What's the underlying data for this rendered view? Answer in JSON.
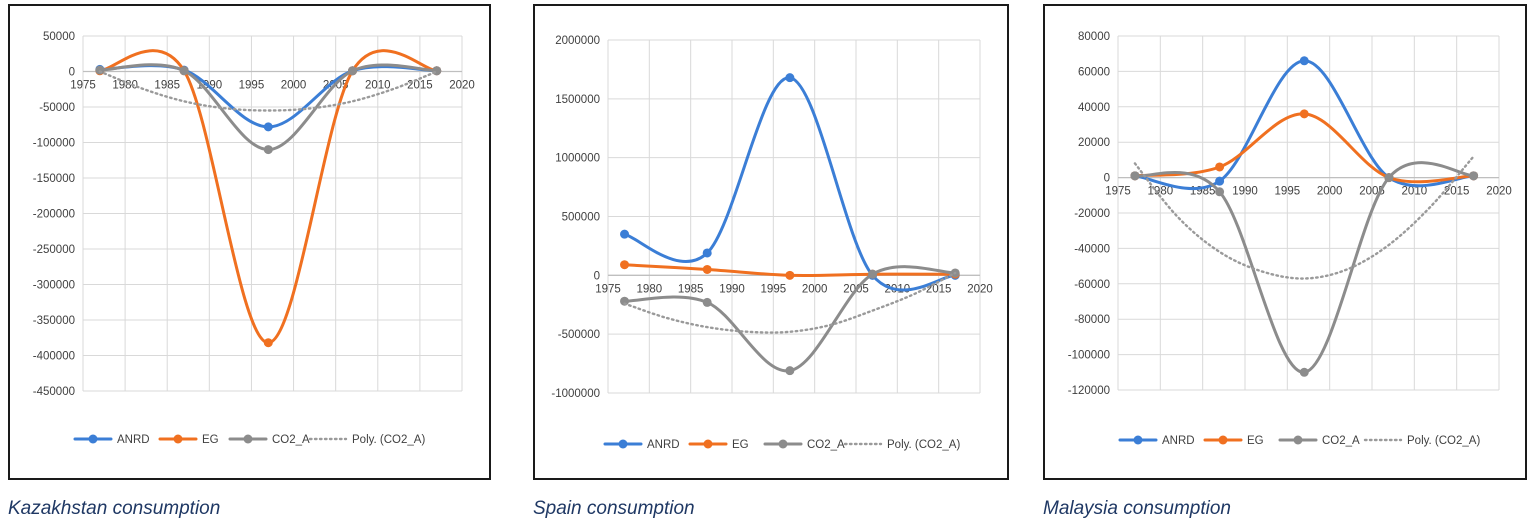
{
  "colors": {
    "ANRD": "#3b7ed6",
    "EG": "#f07020",
    "CO2_A": "#8c8c8c",
    "Poly. (CO2_A)": "#9a9a9a",
    "grid": "#d9d9d9",
    "axis": "#bfbfbf"
  },
  "chart_data": [
    {
      "type": "line",
      "title": "",
      "caption": "Kazakhstan consumption",
      "xlabel": "",
      "ylabel": "",
      "xlim": [
        1975,
        2020
      ],
      "ylim": [
        -450000,
        50000
      ],
      "xticks": [
        1975,
        1980,
        1985,
        1990,
        1995,
        2000,
        2005,
        2010,
        2015,
        2020
      ],
      "xtick_labels": [
        "1975",
        "1980",
        "1985",
        "1990",
        "1995",
        "2000",
        "2005",
        "2010",
        "2015",
        "2020"
      ],
      "yticks": [
        50000,
        0,
        -50000,
        -100000,
        -150000,
        -200000,
        -250000,
        -300000,
        -350000,
        -400000,
        -450000
      ],
      "ytick_labels": [
        "50000",
        "0",
        "-50000",
        "-100000",
        "-150000",
        "-200000",
        "-250000",
        "-300000",
        "-350000",
        "-400000",
        "-450000"
      ],
      "series": [
        {
          "name": "ANRD",
          "smooth": true,
          "markers": true,
          "x": [
            1977,
            1987,
            1997,
            2007,
            2017
          ],
          "y": [
            3000,
            2000,
            -78000,
            1000,
            1000
          ]
        },
        {
          "name": "EG",
          "smooth": true,
          "markers": true,
          "x": [
            1977,
            1987,
            1997,
            2007,
            2017
          ],
          "y": [
            1000,
            1000,
            -382000,
            1000,
            1000
          ]
        },
        {
          "name": "CO2_A",
          "smooth": true,
          "markers": true,
          "x": [
            1977,
            1987,
            1997,
            2007,
            2017
          ],
          "y": [
            2000,
            1000,
            -110000,
            1000,
            1000
          ]
        },
        {
          "name": "Poly. (CO2_A)",
          "smooth": true,
          "markers": false,
          "dotted": true,
          "x": [
            1977,
            1982,
            1987,
            1992,
            1997,
            2002,
            2007,
            2012,
            2017
          ],
          "y": [
            0,
            -24000,
            -42000,
            -52000,
            -55000,
            -52000,
            -42000,
            -24000,
            0
          ]
        }
      ],
      "legend": [
        "ANRD",
        "EG",
        "CO2_A",
        "Poly. (CO2_A)"
      ],
      "legend_position": "bottom"
    },
    {
      "type": "line",
      "title": "",
      "caption": "Spain consumption",
      "xlabel": "",
      "ylabel": "",
      "xlim": [
        1975,
        2020
      ],
      "ylim": [
        -1000000,
        2000000
      ],
      "xticks": [
        1975,
        1980,
        1985,
        1990,
        1995,
        2000,
        2005,
        2010,
        2015,
        2020
      ],
      "xtick_labels": [
        "1975",
        "1980",
        "1985",
        "1990",
        "1995",
        "2000",
        "2005",
        "2010",
        "2015",
        "2020"
      ],
      "yticks": [
        2000000,
        1500000,
        1000000,
        500000,
        0,
        -500000,
        -1000000
      ],
      "ytick_labels": [
        "2000000",
        "1500000",
        "1000000",
        "500000",
        "0",
        "-500000",
        "-1000000"
      ],
      "series": [
        {
          "name": "ANRD",
          "smooth": true,
          "markers": true,
          "x": [
            1977,
            1987,
            1997,
            2007,
            2017
          ],
          "y": [
            350000,
            190000,
            1680000,
            0,
            0
          ]
        },
        {
          "name": "EG",
          "smooth": true,
          "markers": true,
          "x": [
            1977,
            1987,
            1997,
            2007,
            2017
          ],
          "y": [
            90000,
            50000,
            0,
            10000,
            10000
          ]
        },
        {
          "name": "CO2_A",
          "smooth": true,
          "markers": true,
          "x": [
            1977,
            1987,
            1997,
            2007,
            2017
          ],
          "y": [
            -220000,
            -230000,
            -810000,
            10000,
            20000
          ]
        },
        {
          "name": "Poly. (CO2_A)",
          "smooth": true,
          "markers": false,
          "dotted": true,
          "x": [
            1977,
            1982,
            1987,
            1992,
            1997,
            2002,
            2007,
            2012,
            2017
          ],
          "y": [
            -240000,
            -360000,
            -440000,
            -480000,
            -480000,
            -420000,
            -300000,
            -160000,
            20000
          ]
        }
      ],
      "legend": [
        "ANRD",
        "EG",
        "CO2_A",
        "Poly. (CO2_A)"
      ],
      "legend_position": "bottom"
    },
    {
      "type": "line",
      "title": "",
      "caption": "Malaysia consumption",
      "xlabel": "",
      "ylabel": "",
      "xlim": [
        1975,
        2020
      ],
      "ylim": [
        -120000,
        80000
      ],
      "xticks": [
        1975,
        1980,
        1985,
        1990,
        1995,
        2000,
        2005,
        2010,
        2015,
        2020
      ],
      "xtick_labels": [
        "1975",
        "1980",
        "1985",
        "1990",
        "1995",
        "2000",
        "2005",
        "2010",
        "2015",
        "2020"
      ],
      "yticks": [
        80000,
        60000,
        40000,
        20000,
        0,
        -20000,
        -40000,
        -60000,
        -80000,
        -100000,
        -120000
      ],
      "ytick_labels": [
        "80000",
        "60000",
        "40000",
        "20000",
        "0",
        "-20000",
        "-40000",
        "-60000",
        "-80000",
        "-100000",
        "-120000"
      ],
      "series": [
        {
          "name": "ANRD",
          "smooth": true,
          "markers": true,
          "x": [
            1977,
            1987,
            1997,
            2007,
            2017
          ],
          "y": [
            1000,
            -2000,
            66000,
            0,
            1000
          ]
        },
        {
          "name": "EG",
          "smooth": true,
          "markers": true,
          "x": [
            1977,
            1987,
            1997,
            2007,
            2017
          ],
          "y": [
            1000,
            6000,
            36000,
            0,
            1000
          ]
        },
        {
          "name": "CO2_A",
          "smooth": true,
          "markers": true,
          "x": [
            1977,
            1987,
            1997,
            2007,
            2017
          ],
          "y": [
            1000,
            -8000,
            -110000,
            0,
            1000
          ]
        },
        {
          "name": "Poly. (CO2_A)",
          "smooth": true,
          "markers": false,
          "dotted": true,
          "x": [
            1977,
            1982,
            1987,
            1992,
            1997,
            2002,
            2007,
            2012,
            2017
          ],
          "y": [
            8000,
            -22000,
            -42000,
            -53000,
            -57000,
            -52000,
            -38000,
            -16000,
            12000
          ]
        }
      ],
      "legend": [
        "ANRD",
        "EG",
        "CO2_A",
        "Poly. (CO2_A)"
      ],
      "legend_position": "bottom"
    }
  ]
}
